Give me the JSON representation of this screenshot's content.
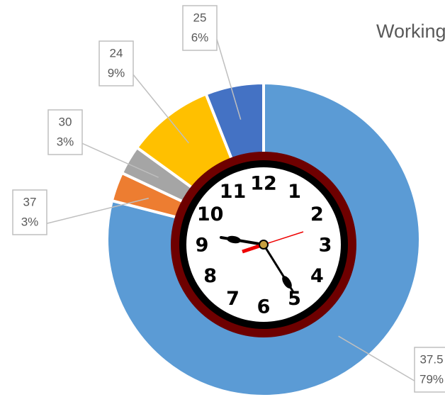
{
  "chart_data": {
    "type": "donut",
    "title": "Working",
    "categories": [
      "37.5",
      "37",
      "30",
      "24",
      "25"
    ],
    "values": [
      79,
      3,
      3,
      9,
      6
    ],
    "value_labels": [
      "79%",
      "3%",
      "3%",
      "9%",
      "6%"
    ],
    "colors": [
      "#5b9bd5",
      "#ed7d31",
      "#a5a5a5",
      "#ffc000",
      "#4472c4"
    ]
  },
  "clock": {
    "numerals": [
      "12",
      "1",
      "2",
      "3",
      "4",
      "5",
      "6",
      "7",
      "8",
      "9",
      "10",
      "11"
    ]
  }
}
